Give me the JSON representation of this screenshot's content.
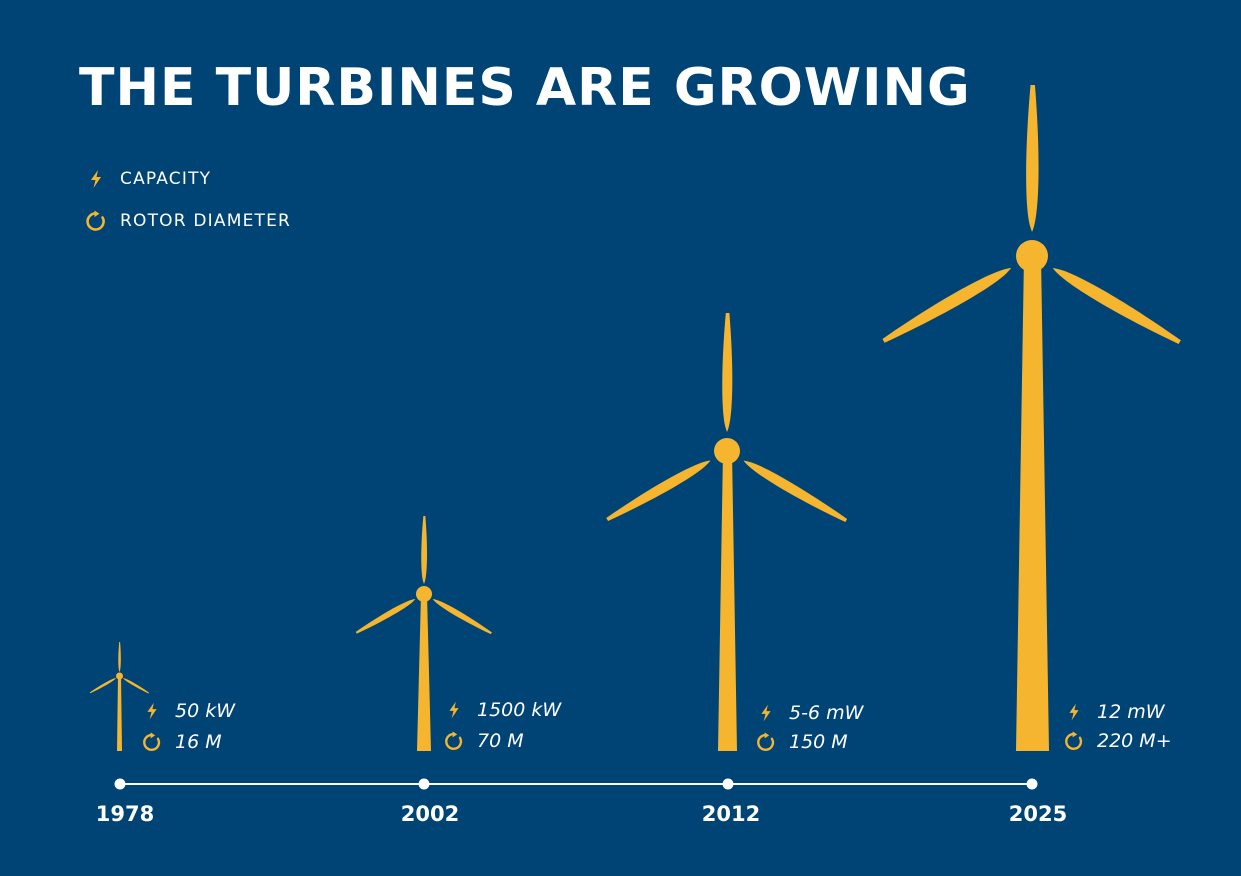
{
  "title": "THE TURBINES ARE GROWING",
  "colors": {
    "background": "#004475",
    "accent": "#F5B52E",
    "text": "#FFFFFF"
  },
  "legend": [
    {
      "icon": "lightning-icon",
      "label": "CAPACITY"
    },
    {
      "icon": "rotate-icon",
      "label": "ROTOR DIAMETER"
    }
  ],
  "turbines": [
    {
      "year": "1978",
      "capacity": "50 kW",
      "rotor_diameter": "16 M"
    },
    {
      "year": "2002",
      "capacity": "1500 kW",
      "rotor_diameter": "70 M"
    },
    {
      "year": "2012",
      "capacity": "5-6 mW",
      "rotor_diameter": "150 M"
    },
    {
      "year": "2025",
      "capacity": "12 mW",
      "rotor_diameter": "220 M+"
    }
  ]
}
